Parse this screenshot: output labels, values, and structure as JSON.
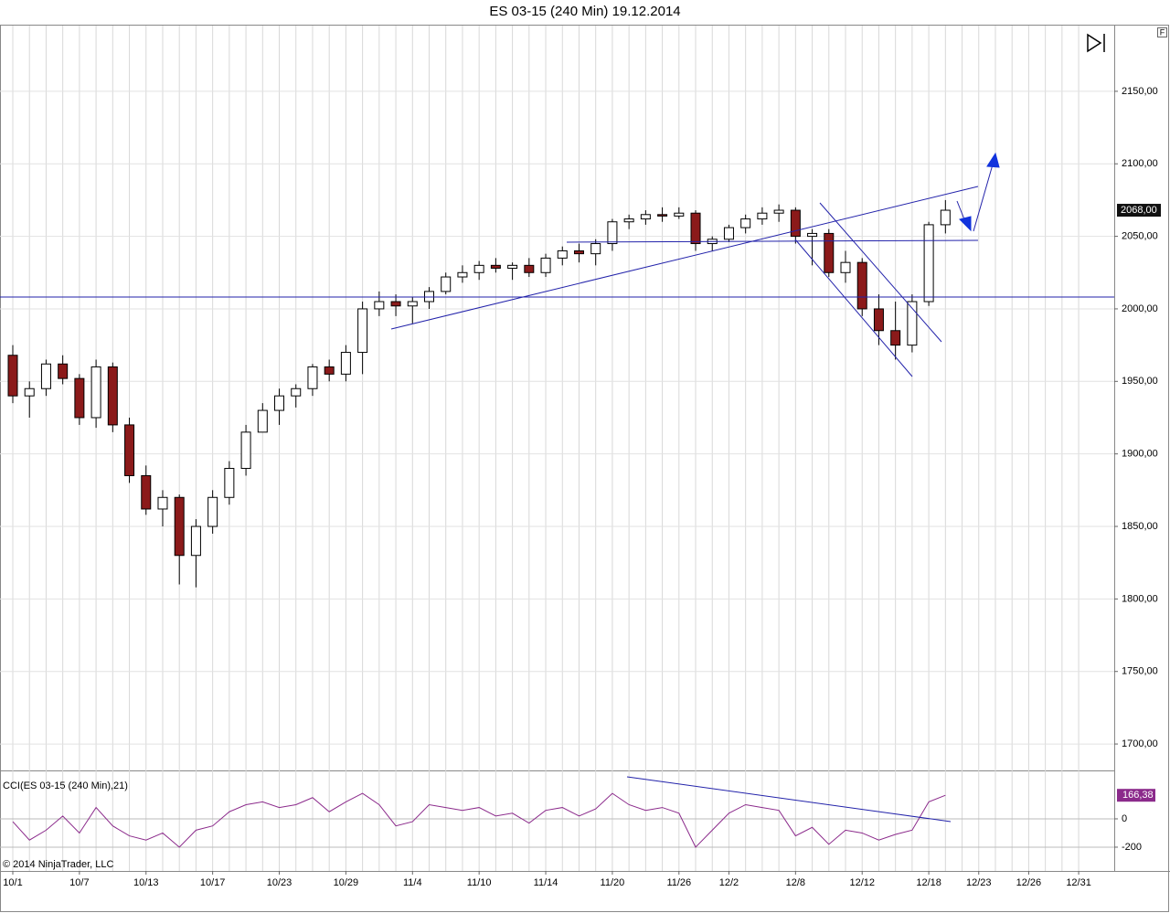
{
  "chart_data": [
    {
      "type": "candlestick",
      "title": "ES 03-15 (240 Min)  19.12.2014",
      "categories": [
        "10/1",
        null,
        null,
        null,
        "10/7",
        null,
        null,
        null,
        "10/13",
        null,
        null,
        null,
        "10/17",
        null,
        null,
        null,
        "10/23",
        null,
        null,
        null,
        "10/29",
        null,
        null,
        null,
        "11/4",
        null,
        null,
        null,
        "11/10",
        null,
        null,
        null,
        "11/14",
        null,
        null,
        null,
        "11/20",
        null,
        null,
        null,
        "11/26",
        null,
        null,
        "12/2",
        null,
        null,
        null,
        "12/8",
        null,
        null,
        null,
        "12/12",
        null,
        null,
        null,
        "12/18",
        null,
        null,
        "12/23",
        null,
        null,
        "12/26",
        null,
        null,
        "12/31"
      ],
      "open": [
        1968,
        1940,
        1945,
        1962,
        1952,
        1925,
        1960,
        1920,
        1885,
        1862,
        1870,
        1830,
        1850,
        1870,
        1890,
        1915,
        1930,
        1940,
        1945,
        1960,
        1955,
        1970,
        2000,
        2005,
        2002,
        2005,
        2012,
        2022,
        2025,
        2030,
        2028,
        2030,
        2025,
        2035,
        2040,
        2038,
        2045,
        2060,
        2062,
        2065,
        2064,
        2066,
        2045,
        2048,
        2056,
        2062,
        2066,
        2068,
        2050,
        2052,
        2025,
        2032,
        2000,
        1985,
        1975,
        2005,
        2058,
        null,
        null,
        null,
        null,
        null,
        null,
        null,
        null
      ],
      "high": [
        1975,
        1950,
        1965,
        1968,
        1955,
        1965,
        1963,
        1925,
        1892,
        1875,
        1872,
        1855,
        1875,
        1895,
        1920,
        1935,
        1945,
        1948,
        1962,
        1965,
        1975,
        2005,
        2012,
        2010,
        2008,
        2015,
        2025,
        2030,
        2033,
        2035,
        2032,
        2035,
        2038,
        2043,
        2045,
        2048,
        2062,
        2065,
        2068,
        2070,
        2070,
        2068,
        2050,
        2058,
        2065,
        2070,
        2072,
        2070,
        2055,
        2055,
        2040,
        2035,
        2010,
        2005,
        2010,
        2060,
        2075,
        null,
        null,
        null,
        null,
        null,
        null,
        null,
        null
      ],
      "low": [
        1935,
        1925,
        1940,
        1948,
        1920,
        1918,
        1915,
        1880,
        1858,
        1850,
        1810,
        1808,
        1845,
        1865,
        1885,
        1915,
        1920,
        1932,
        1940,
        1950,
        1950,
        1955,
        1995,
        1995,
        1990,
        2000,
        2010,
        2018,
        2020,
        2025,
        2020,
        2022,
        2022,
        2030,
        2032,
        2030,
        2040,
        2055,
        2058,
        2060,
        2062,
        2040,
        2040,
        2046,
        2052,
        2058,
        2060,
        2045,
        2030,
        2022,
        2018,
        1995,
        1975,
        1965,
        1970,
        2002,
        2052,
        null,
        null,
        null,
        null,
        null,
        null,
        null,
        null
      ],
      "close": [
        1940,
        1945,
        1962,
        1952,
        1925,
        1960,
        1920,
        1885,
        1862,
        1870,
        1830,
        1850,
        1870,
        1890,
        1915,
        1930,
        1940,
        1945,
        1960,
        1955,
        1970,
        2000,
        2005,
        2002,
        2005,
        2012,
        2022,
        2025,
        2030,
        2028,
        2030,
        2025,
        2035,
        2040,
        2038,
        2045,
        2060,
        2062,
        2065,
        2064,
        2066,
        2045,
        2048,
        2056,
        2062,
        2066,
        2068,
        2050,
        2052,
        2025,
        2032,
        2000,
        1985,
        1975,
        2005,
        2058,
        2068,
        null,
        null,
        null,
        null,
        null,
        null,
        null,
        null
      ],
      "up_color": "#ffffff",
      "down_color": "#8b1a1a",
      "last_price": {
        "value": 2068,
        "label": "2068,00"
      },
      "ylim": [
        1682.4,
        2195.3
      ],
      "yticks": [
        {
          "value": 1700,
          "label": "1700,00"
        },
        {
          "value": 1750,
          "label": "1750,00"
        },
        {
          "value": 1800,
          "label": "1800,00"
        },
        {
          "value": 1850,
          "label": "1850,00"
        },
        {
          "value": 1900,
          "label": "1900,00"
        },
        {
          "value": 1950,
          "label": "1950,00"
        },
        {
          "value": 2000,
          "label": "2000,00"
        },
        {
          "value": 2050,
          "label": "2050,00"
        },
        {
          "value": 2100,
          "label": "2100,00"
        },
        {
          "value": 2150,
          "label": "2150,00"
        }
      ],
      "grid": true,
      "flag": "F"
    },
    {
      "type": "line",
      "title": "CCI(ES 03-15 (240 Min),21)",
      "color": "#8b2a8b",
      "values": [
        -20,
        -150,
        -80,
        20,
        -100,
        80,
        -50,
        -120,
        -150,
        -100,
        -200,
        -80,
        -50,
        50,
        100,
        120,
        80,
        100,
        150,
        50,
        120,
        180,
        100,
        -50,
        -20,
        100,
        80,
        60,
        80,
        20,
        40,
        -30,
        60,
        80,
        20,
        70,
        180,
        100,
        60,
        80,
        40,
        -200,
        -80,
        40,
        100,
        80,
        60,
        -120,
        -60,
        -180,
        -80,
        -100,
        -150,
        -110,
        -80,
        120,
        166.38,
        null,
        null,
        null,
        null,
        null,
        null,
        null,
        null
      ],
      "value_labels": {
        "56": "166,38"
      },
      "ylim": [
        -368,
        329
      ],
      "yticks": [
        0,
        -200
      ],
      "copyright": "© 2014 NinjaTrader, LLC"
    }
  ]
}
